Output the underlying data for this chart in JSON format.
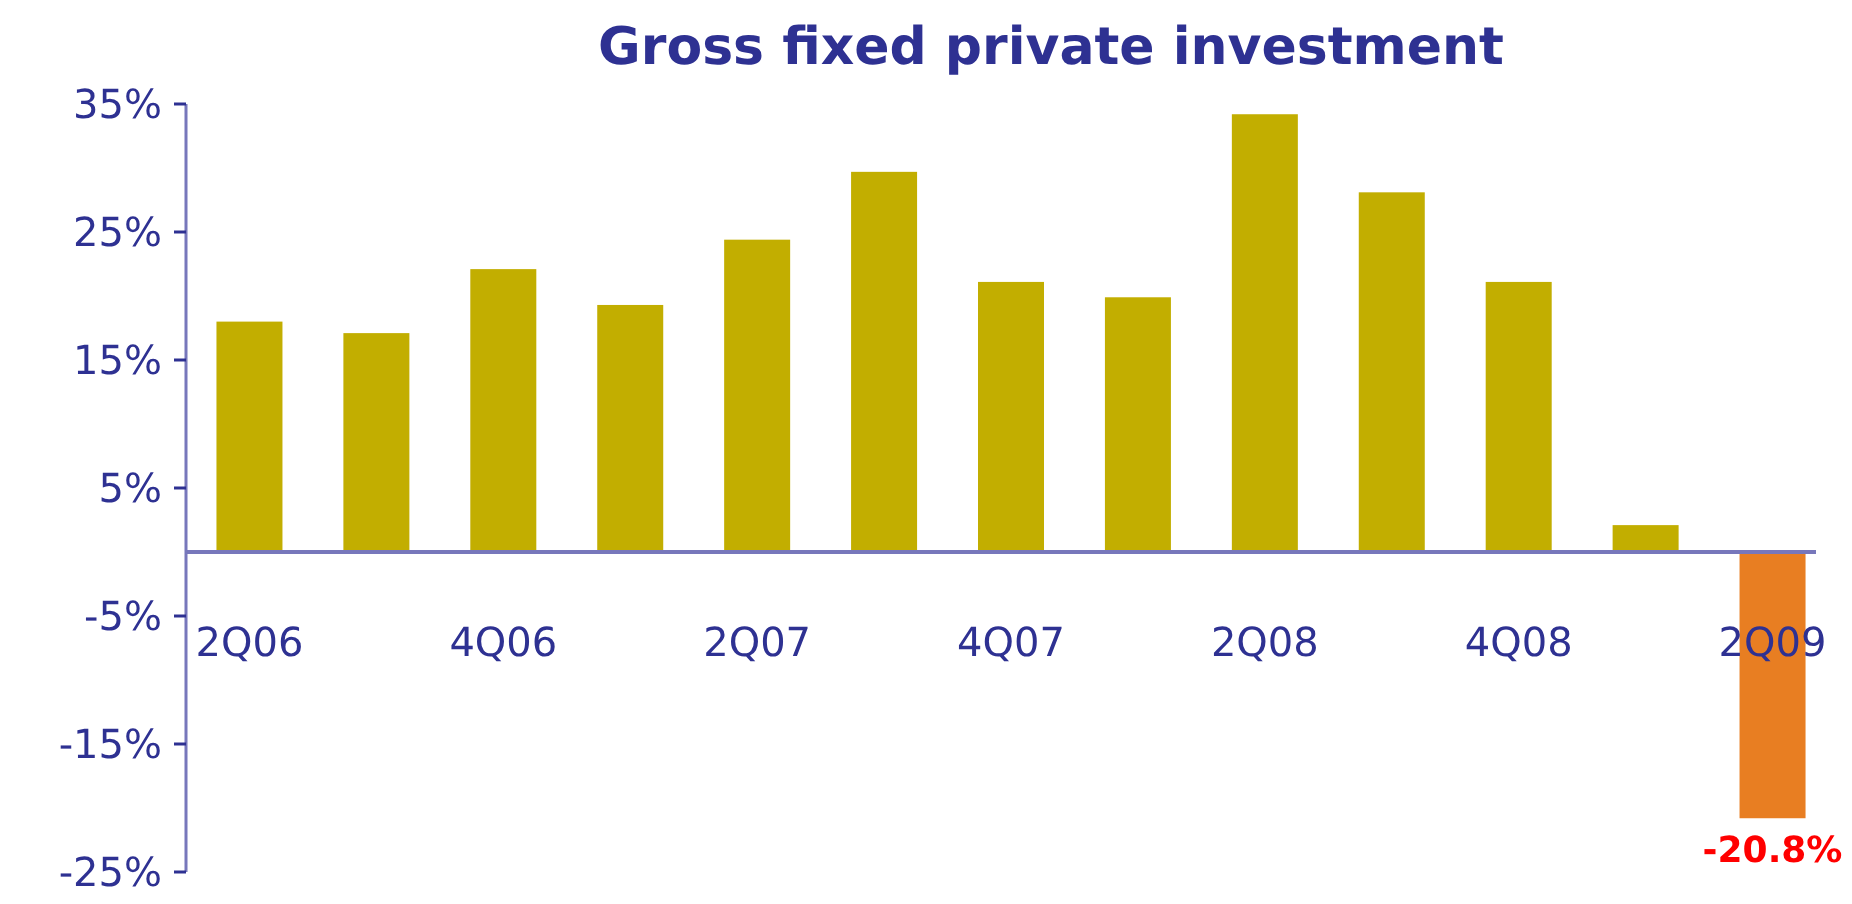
{
  "chart_data": {
    "type": "bar",
    "title": "Gross fixed private investment",
    "categories": [
      "2Q06",
      null,
      "4Q06",
      null,
      "2Q07",
      null,
      "4Q07",
      null,
      "2Q08",
      null,
      "4Q08",
      null,
      "2Q09"
    ],
    "values": [
      18.0,
      17.1,
      22.1,
      19.3,
      24.4,
      29.7,
      21.1,
      19.9,
      34.2,
      28.1,
      21.1,
      2.1,
      -20.8
    ],
    "colors": [
      "#c2ae00",
      "#c2ae00",
      "#c2ae00",
      "#c2ae00",
      "#c2ae00",
      "#c2ae00",
      "#c2ae00",
      "#c2ae00",
      "#c2ae00",
      "#c2ae00",
      "#c2ae00",
      "#c2ae00",
      "#e87e22"
    ],
    "value_labels": [
      null,
      null,
      null,
      null,
      null,
      null,
      null,
      null,
      null,
      null,
      null,
      null,
      "-20.8%"
    ],
    "ylim": [
      -25,
      35
    ],
    "yticks": [
      {
        "value": 35,
        "label": "35%"
      },
      {
        "value": 25,
        "label": "25%"
      },
      {
        "value": 15,
        "label": "15%"
      },
      {
        "value": 5,
        "label": "5%"
      },
      {
        "value": -5,
        "label": "-5%"
      },
      {
        "value": -15,
        "label": "-15%"
      },
      {
        "value": -25,
        "label": "-25%"
      }
    ],
    "grid": false
  }
}
